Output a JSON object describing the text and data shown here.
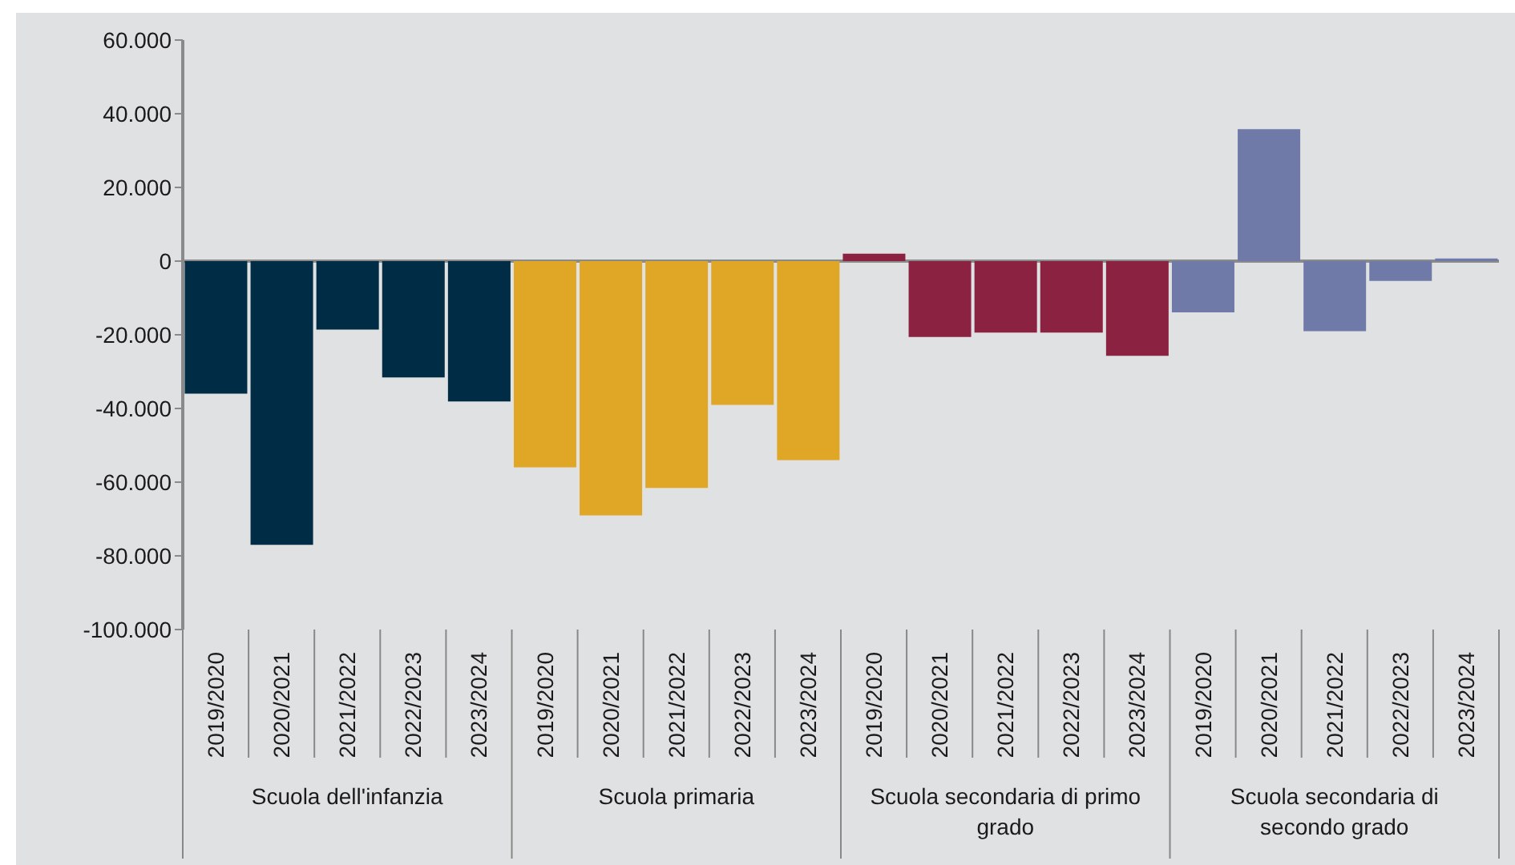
{
  "chart_data": {
    "type": "bar",
    "categories": [
      "2019/2020",
      "2020/2021",
      "2021/2022",
      "2022/2023",
      "2023/2024",
      "2019/2020",
      "2020/2021",
      "2021/2022",
      "2022/2023",
      "2023/2024",
      "2019/2020",
      "2020/2021",
      "2021/2022",
      "2022/2023",
      "2023/2024",
      "2019/2020",
      "2020/2021",
      "2021/2022",
      "2022/2023",
      "2023/2024"
    ],
    "values": [
      -36000,
      -77000,
      -18600,
      -31600,
      -38100,
      -56000,
      -69000,
      -61600,
      -39000,
      -54000,
      2000,
      -20600,
      -19400,
      -19400,
      -25700,
      -13900,
      35800,
      -19000,
      -5400,
      700
    ],
    "colors": [
      "#002c45",
      "#002c45",
      "#002c45",
      "#002c45",
      "#002c45",
      "#e0a626",
      "#e0a626",
      "#e0a626",
      "#e0a626",
      "#e0a626",
      "#8c2241",
      "#8c2241",
      "#8c2241",
      "#8c2241",
      "#8c2241",
      "#6f7aa9",
      "#6f7aa9",
      "#6f7aa9",
      "#6f7aa9",
      "#6f7aa9"
    ],
    "ylim": [
      -100000,
      60000
    ],
    "yticks": [
      {
        "value": -100000,
        "label": "-100.000"
      },
      {
        "value": -80000,
        "label": "-80.000"
      },
      {
        "value": -60000,
        "label": "-60.000"
      },
      {
        "value": -40000,
        "label": "-40.000"
      },
      {
        "value": -20000,
        "label": "-20.000"
      },
      0,
      {
        "value": 20000,
        "label": "20.000"
      },
      {
        "value": 40000,
        "label": "40.000"
      },
      {
        "value": 60000,
        "label": "60.000"
      }
    ],
    "annotations": [
      "Scuola dell'infanzia",
      "Scuola primaria",
      "Scuola secondaria di primo grado",
      "Scuola secondaria di secondo grado"
    ],
    "legend": false
  }
}
